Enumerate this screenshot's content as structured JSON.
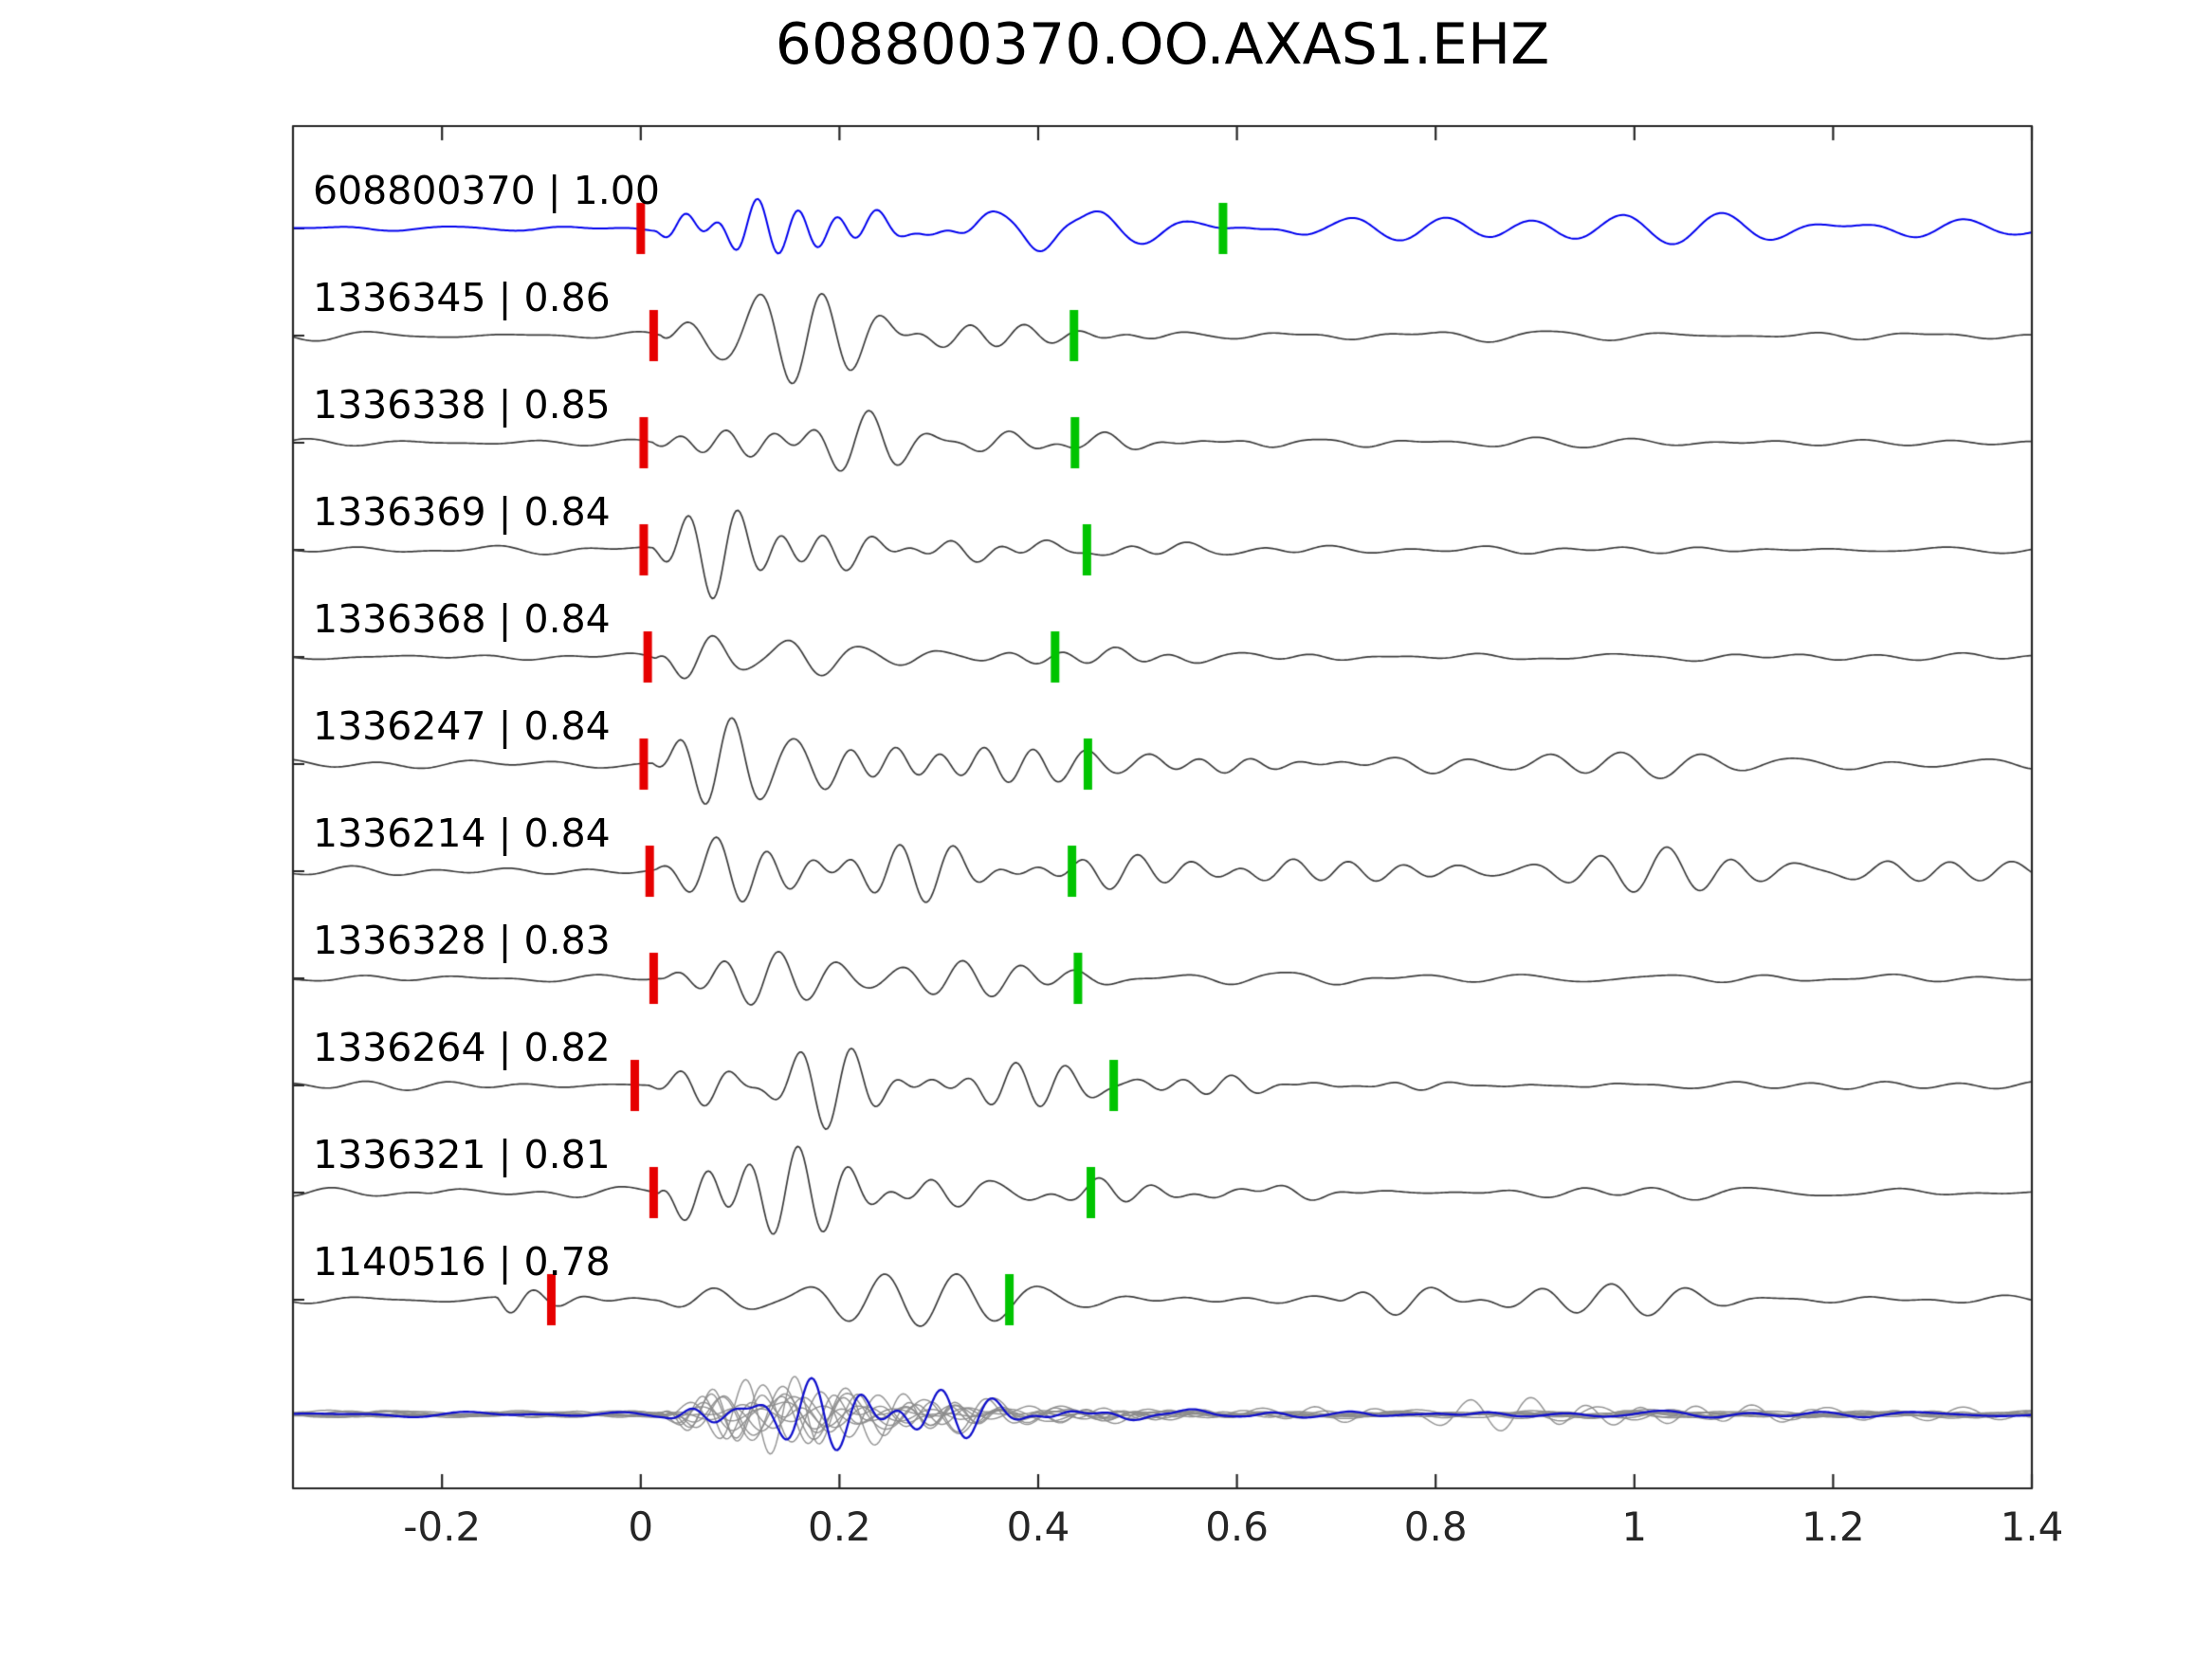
{
  "title": "608800370.OO.AXAS1.EHZ",
  "chart_data": {
    "type": "line",
    "subtype": "seismic-waveform-template-detections",
    "title": "608800370.OO.AXAS1.EHZ",
    "xlim": [
      -0.35,
      1.4
    ],
    "x_ticks": [
      "-0.2",
      "0",
      "0.2",
      "0.4",
      "0.6",
      "0.8",
      "1",
      "1.2",
      "1.4"
    ],
    "x_tick_values": [
      -0.2,
      0,
      0.2,
      0.4,
      0.6,
      0.8,
      1,
      1.2,
      1.4
    ],
    "grid": false,
    "legend_position": "none",
    "traces": [
      {
        "label": "608800370 | 1.00",
        "id": "608800370",
        "correlation": "1.00",
        "color_role": "template",
        "red_pick": 0.0,
        "green_pick": 0.586
      },
      {
        "label": "1336345 | 0.86",
        "id": "1336345",
        "correlation": "0.86",
        "color_role": "detection",
        "red_pick": 0.013,
        "green_pick": 0.436
      },
      {
        "label": "1336338 | 0.85",
        "id": "1336338",
        "correlation": "0.85",
        "color_role": "detection",
        "red_pick": 0.003,
        "green_pick": 0.437
      },
      {
        "label": "1336369 | 0.84",
        "id": "1336369",
        "correlation": "0.84",
        "color_role": "detection",
        "red_pick": 0.003,
        "green_pick": 0.449
      },
      {
        "label": "1336368 | 0.84",
        "id": "1336368",
        "correlation": "0.84",
        "color_role": "detection",
        "red_pick": 0.007,
        "green_pick": 0.417
      },
      {
        "label": "1336247 | 0.84",
        "id": "1336247",
        "correlation": "0.84",
        "color_role": "detection",
        "red_pick": 0.003,
        "green_pick": 0.45
      },
      {
        "label": "1336214 | 0.84",
        "id": "1336214",
        "correlation": "0.84",
        "color_role": "detection",
        "red_pick": 0.009,
        "green_pick": 0.434
      },
      {
        "label": "1336328 | 0.83",
        "id": "1336328",
        "correlation": "0.83",
        "color_role": "detection",
        "red_pick": 0.013,
        "green_pick": 0.44
      },
      {
        "label": "1336264 | 0.82",
        "id": "1336264",
        "correlation": "0.82",
        "color_role": "detection",
        "red_pick": -0.006,
        "green_pick": 0.476
      },
      {
        "label": "1336321 | 0.81",
        "id": "1336321",
        "correlation": "0.81",
        "color_role": "detection",
        "red_pick": 0.013,
        "green_pick": 0.453
      },
      {
        "label": "1140516 | 0.78",
        "id": "1140516",
        "correlation": "0.78",
        "color_role": "detection",
        "red_pick": -0.09,
        "green_pick": 0.371
      },
      {
        "label": "",
        "id": "stack-overlay",
        "correlation": null,
        "color_role": "overlay",
        "red_pick": null,
        "green_pick": null
      }
    ],
    "colors": {
      "template_blue": "#0000ee",
      "detection_gray": "#3c3c3c",
      "overlay_gray": "#8c8c8c",
      "overlay_blue": "#1111cc",
      "pick_red": "#e60000",
      "pick_green": "#00c400",
      "axis": "#262626",
      "background": "#ffffff"
    }
  }
}
